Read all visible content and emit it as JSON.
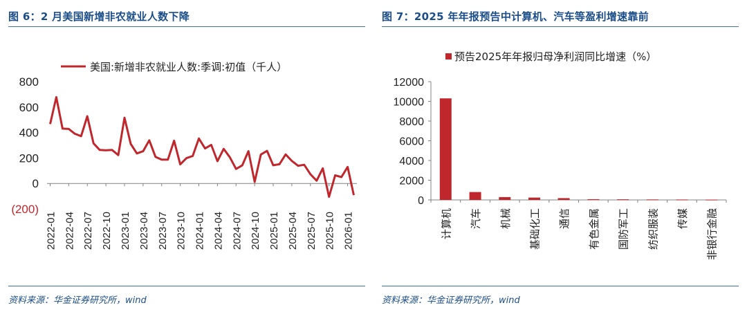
{
  "left": {
    "title": "图 6：2 月美国新增非农就业人数下降",
    "source": "资料来源：华金证券研究所，wind"
  },
  "right": {
    "title": "图 7：2025 年年报预告中计算机、汽车等盈利增速靠前",
    "source": "资料来源：华金证券研究所，wind"
  },
  "colors": {
    "series": "#c0272d",
    "axis": "#808080",
    "negative_label": "#c0272d",
    "title": "#1b4d89"
  },
  "chart_data": [
    {
      "type": "line",
      "title": "",
      "legend": "美国:新增非农就业人数:季调:初值（千人）",
      "legend_position": "top",
      "ylim": [
        -200,
        800
      ],
      "yticks": [
        800,
        600,
        400,
        200,
        0,
        -200
      ],
      "ytick_labels": [
        "800",
        "600",
        "400",
        "200",
        "0",
        "(200)"
      ],
      "xtick_labels": [
        "2022-01",
        "2022-04",
        "2022-07",
        "2022-10",
        "2023-01",
        "2023-04",
        "2023-07",
        "2023-10",
        "2024-01",
        "2024-04",
        "2024-07",
        "2024-10",
        "2025-01",
        "2025-04",
        "2025-07",
        "2025-10",
        "2026-01"
      ],
      "xtick_every": 3,
      "values": [
        467,
        678,
        431,
        428,
        390,
        372,
        528,
        315,
        263,
        261,
        263,
        223,
        517,
        311,
        236,
        253,
        339,
        209,
        187,
        187,
        336,
        150,
        199,
        216,
        353,
        275,
        303,
        175,
        272,
        206,
        114,
        142,
        254,
        12,
        227,
        256,
        143,
        151,
        228,
        177,
        139,
        147,
        73,
        22,
        119,
        -105,
        64,
        50,
        130,
        -92
      ]
    },
    {
      "type": "bar",
      "title": "",
      "legend": "预告2025年年报归母净利润同比增速（%）",
      "legend_position": "top",
      "ylim": [
        0,
        12000
      ],
      "yticks": [
        12000,
        10000,
        8000,
        6000,
        4000,
        2000,
        0
      ],
      "ytick_labels": [
        "12000",
        "10000",
        "8000",
        "6000",
        "4000",
        "2000",
        "0"
      ],
      "categories": [
        "计算机",
        "汽车",
        "机械",
        "基础化工",
        "通信",
        "有色金属",
        "国防军工",
        "纺织服装",
        "传媒",
        "非银行金融"
      ],
      "values": [
        10300,
        800,
        290,
        240,
        180,
        80,
        60,
        50,
        40,
        30
      ]
    }
  ]
}
